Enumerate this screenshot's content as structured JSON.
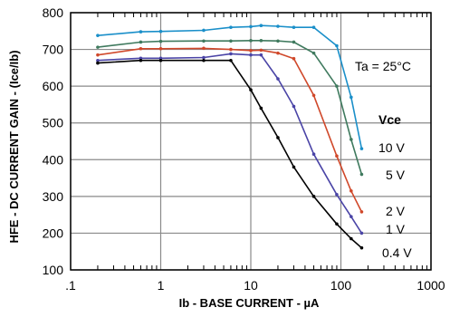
{
  "chart_data": {
    "type": "line",
    "xscale": "log",
    "xlim": [
      0.1,
      1000
    ],
    "ylim": [
      100,
      800
    ],
    "xlabel": "Ib  -  BASE  CURRENT  -  µA",
    "ylabel": "HFE - DC CURRENT  GAIN  -  (Ice/Ib)",
    "x_tick_labels": [
      ".1",
      "1",
      "10",
      "100",
      "1000"
    ],
    "y_ticks": [
      100,
      200,
      300,
      400,
      500,
      600,
      700,
      800
    ],
    "grid": true,
    "annotation": "Ta = 25°C",
    "legend_title": "Vce",
    "series": [
      {
        "name": "10 V",
        "color": "#1a8fc9",
        "x": [
          0.2,
          0.6,
          1,
          3,
          6,
          10,
          13,
          20,
          30,
          50,
          90,
          130,
          170
        ],
        "y": [
          738,
          748,
          749,
          752,
          760,
          762,
          765,
          763,
          760,
          760,
          710,
          570,
          430
        ]
      },
      {
        "name": "5 V",
        "color": "#3f7a5e",
        "x": [
          0.2,
          0.6,
          1,
          3,
          6,
          10,
          13,
          20,
          30,
          50,
          90,
          130,
          170
        ],
        "y": [
          706,
          720,
          722,
          723,
          723,
          724,
          724,
          723,
          720,
          690,
          600,
          455,
          360
        ]
      },
      {
        "name": "2 V",
        "color": "#d0482a",
        "x": [
          0.2,
          0.6,
          1,
          3,
          6,
          10,
          13,
          20,
          30,
          50,
          90,
          130,
          170
        ],
        "y": [
          685,
          702,
          702,
          703,
          700,
          697,
          698,
          690,
          675,
          575,
          410,
          315,
          258
        ]
      },
      {
        "name": "1 V",
        "color": "#4a44a6",
        "x": [
          0.2,
          0.6,
          1,
          3,
          6,
          10,
          13,
          20,
          30,
          50,
          90,
          130,
          170
        ],
        "y": [
          670,
          676,
          676,
          678,
          688,
          685,
          685,
          620,
          545,
          415,
          305,
          245,
          200
        ]
      },
      {
        "name": "0.4 V",
        "color": "#000000",
        "x": [
          0.2,
          0.6,
          1,
          3,
          6,
          10,
          13,
          20,
          30,
          50,
          90,
          130,
          170
        ],
        "y": [
          663,
          670,
          670,
          670,
          670,
          590,
          540,
          460,
          380,
          300,
          225,
          185,
          160
        ]
      }
    ]
  }
}
